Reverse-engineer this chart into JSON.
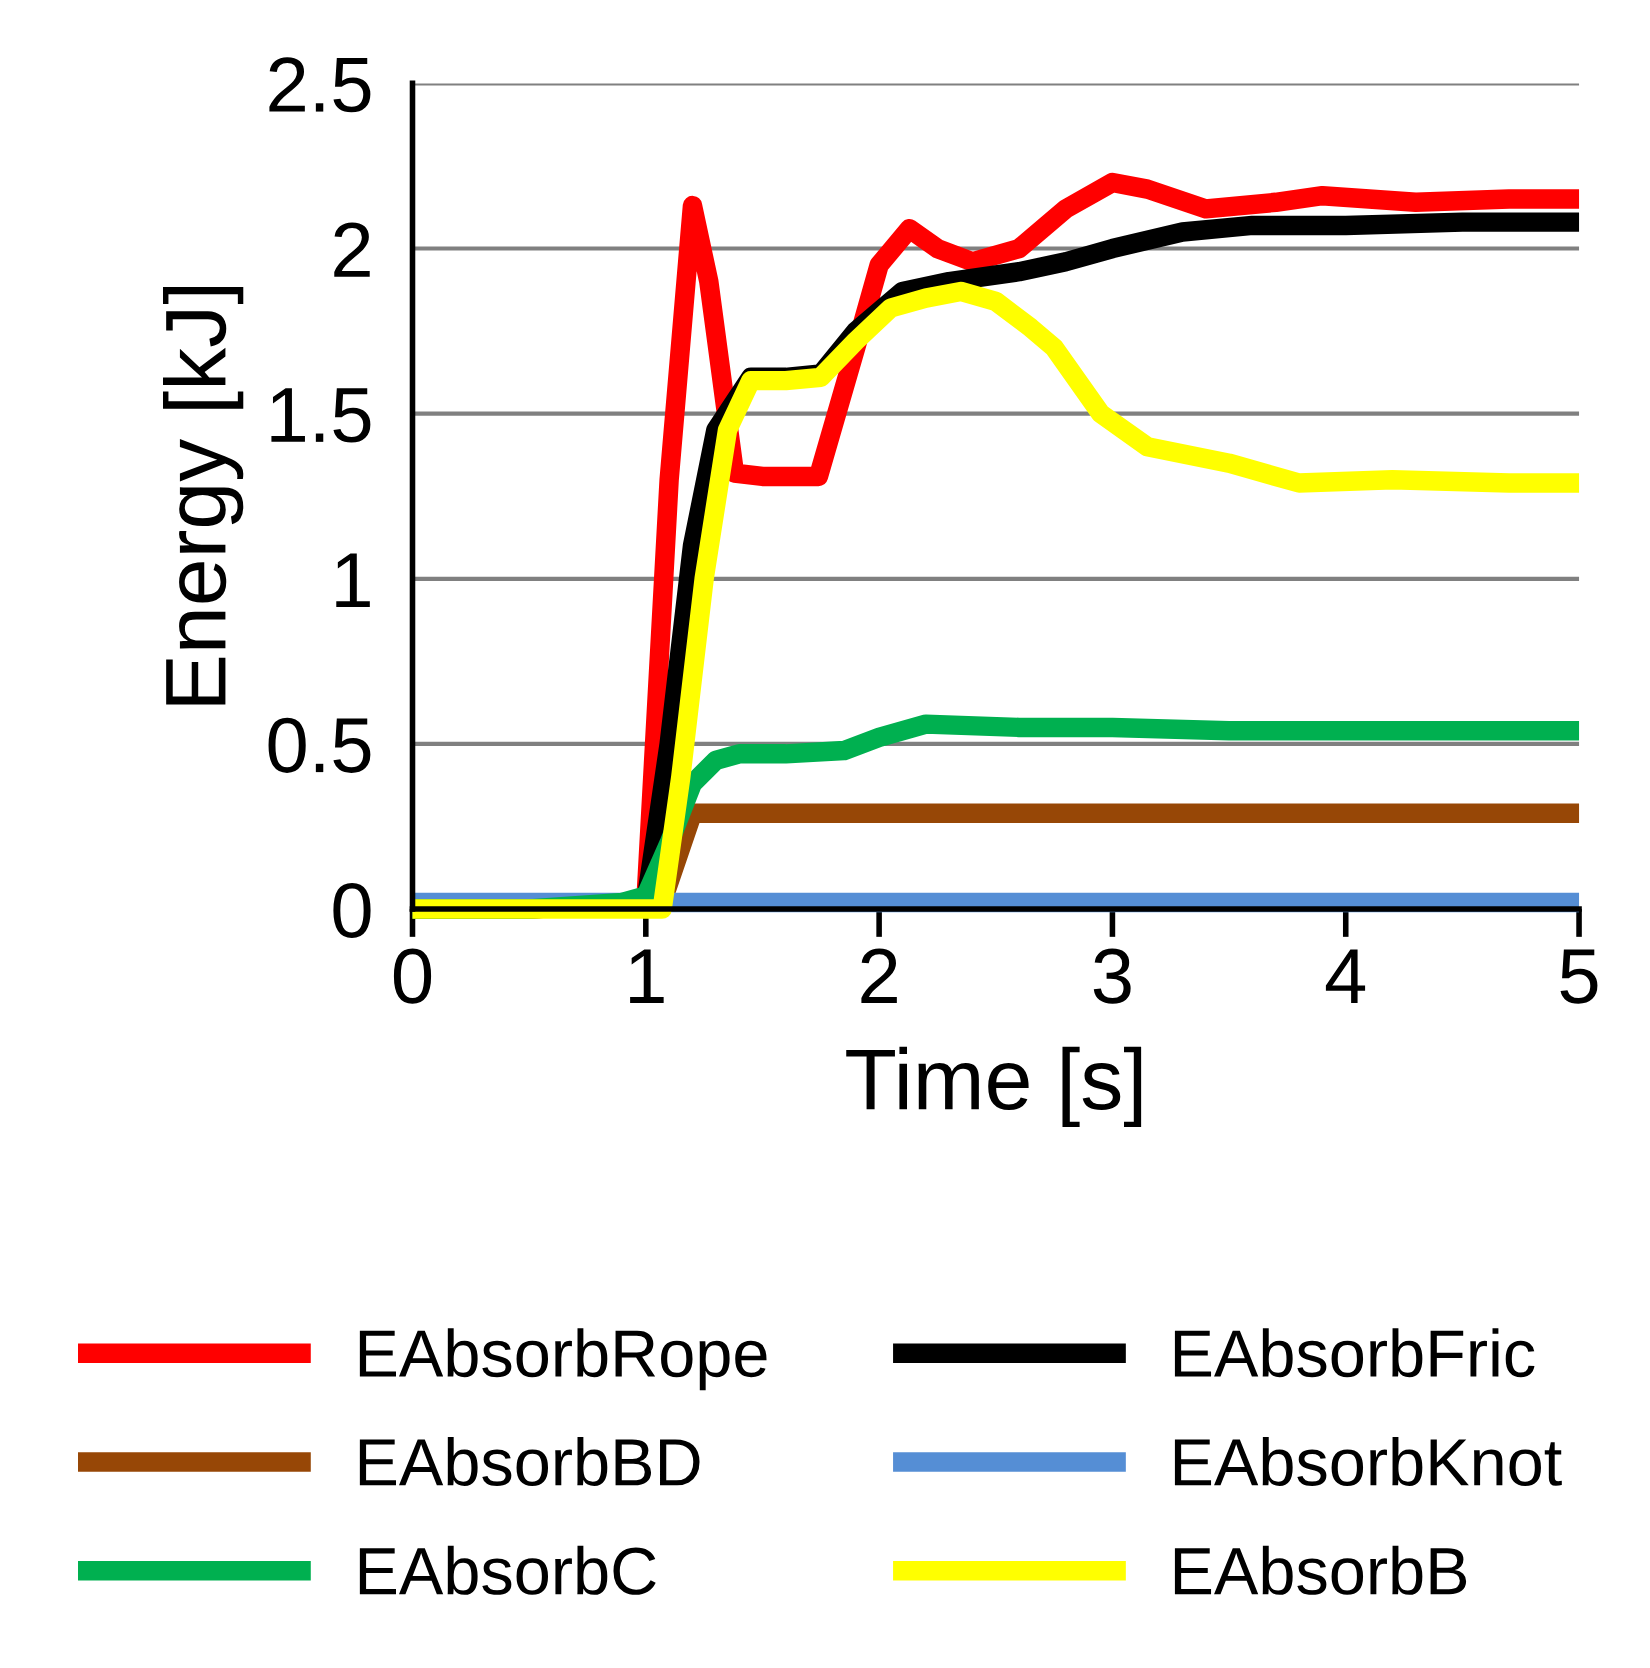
{
  "chart_data": {
    "type": "line",
    "xlabel": "Time [s]",
    "ylabel": "Energy [kJ]",
    "xlim": [
      0,
      5
    ],
    "ylim": [
      0,
      2.5
    ],
    "xticks": [
      0,
      1,
      2,
      3,
      4,
      5
    ],
    "yticks": [
      0,
      0.5,
      1,
      1.5,
      2,
      2.5
    ],
    "grid": "y",
    "legend": "bottom",
    "marker": "none",
    "line_style": "solid",
    "series": [
      {
        "name": "EAbsorbRope",
        "color": "#ff0000",
        "x": [
          0,
          0.5,
          1.0,
          1.1,
          1.2,
          1.27,
          1.38,
          1.5,
          1.74,
          1.9,
          2.0,
          2.13,
          2.25,
          2.4,
          2.6,
          2.8,
          3.0,
          3.15,
          3.4,
          3.7,
          3.9,
          4.3,
          4.7,
          5.0
        ],
        "values": [
          0,
          0,
          0.02,
          1.3,
          2.13,
          1.9,
          1.32,
          1.31,
          1.31,
          1.7,
          1.95,
          2.06,
          2.0,
          1.96,
          2.0,
          2.12,
          2.2,
          2.18,
          2.12,
          2.14,
          2.16,
          2.14,
          2.15,
          2.15
        ]
      },
      {
        "name": "EAbsorbFric",
        "color": "#000000",
        "x": [
          0,
          0.5,
          1.0,
          1.1,
          1.2,
          1.3,
          1.45,
          1.6,
          1.75,
          1.9,
          2.1,
          2.3,
          2.6,
          2.8,
          3.0,
          3.3,
          3.6,
          4.0,
          4.5,
          5.0
        ],
        "values": [
          0,
          0,
          0.02,
          0.5,
          1.1,
          1.45,
          1.61,
          1.61,
          1.62,
          1.75,
          1.87,
          1.9,
          1.93,
          1.96,
          2.0,
          2.05,
          2.07,
          2.07,
          2.08,
          2.08
        ]
      },
      {
        "name": "EAbsorbBD",
        "color": "#974706",
        "x": [
          1.0,
          1.07,
          1.2,
          1.5,
          2.0,
          3.0,
          4.0,
          5.0
        ],
        "values": [
          0,
          0.02,
          0.29,
          0.29,
          0.29,
          0.29,
          0.29,
          0.29
        ]
      },
      {
        "name": "EAbsorbKnot",
        "color": "#558ed5",
        "x": [
          0,
          1.0,
          2.0,
          3.0,
          4.0,
          5.0
        ],
        "values": [
          0.02,
          0.02,
          0.02,
          0.02,
          0.02,
          0.02
        ]
      },
      {
        "name": "EAbsorbC",
        "color": "#00b050",
        "x": [
          0,
          0.5,
          0.9,
          1.0,
          1.1,
          1.2,
          1.3,
          1.4,
          1.6,
          1.85,
          2.0,
          2.2,
          2.6,
          3.0,
          3.5,
          4.0,
          4.5,
          5.0
        ],
        "values": [
          0,
          0,
          0.02,
          0.04,
          0.2,
          0.38,
          0.45,
          0.47,
          0.47,
          0.48,
          0.52,
          0.56,
          0.55,
          0.55,
          0.54,
          0.54,
          0.54,
          0.54
        ]
      },
      {
        "name": "EAbsorbB",
        "color": "#ffff00",
        "x": [
          0,
          0.5,
          1.07,
          1.15,
          1.25,
          1.35,
          1.45,
          1.6,
          1.75,
          1.9,
          2.05,
          2.2,
          2.35,
          2.5,
          2.65,
          2.75,
          2.95,
          3.15,
          3.5,
          3.8,
          4.2,
          4.7,
          5.0
        ],
        "values": [
          0,
          0,
          0,
          0.4,
          1.0,
          1.45,
          1.6,
          1.6,
          1.61,
          1.72,
          1.82,
          1.85,
          1.87,
          1.84,
          1.76,
          1.7,
          1.5,
          1.4,
          1.35,
          1.29,
          1.3,
          1.29,
          1.29
        ]
      }
    ]
  }
}
